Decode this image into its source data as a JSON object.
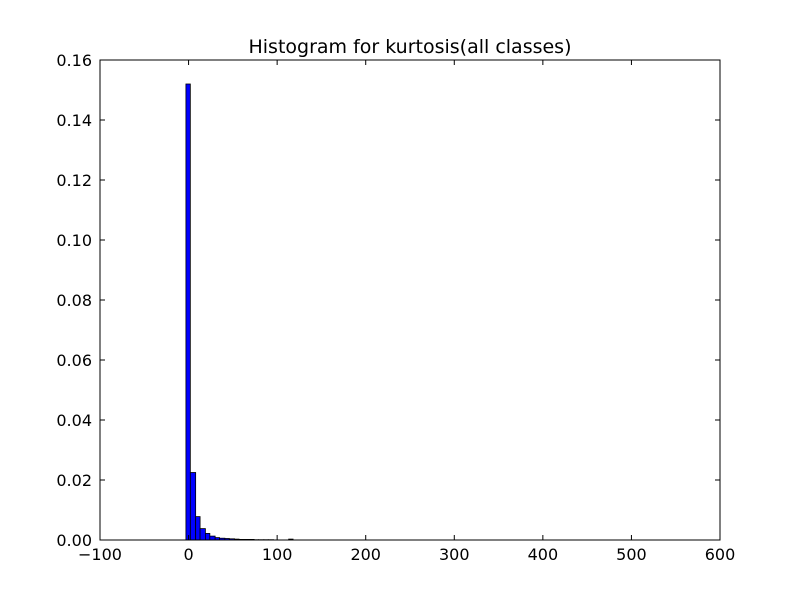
{
  "chart_data": {
    "type": "bar",
    "title": "Histogram for kurtosis(all classes)",
    "xlabel": "",
    "ylabel": "",
    "xlim": [
      -100,
      600
    ],
    "ylim": [
      0,
      0.16
    ],
    "xticks": [
      -100,
      0,
      100,
      200,
      300,
      400,
      500,
      600
    ],
    "yticks": [
      0.0,
      0.02,
      0.04,
      0.06,
      0.08,
      0.1,
      0.12,
      0.14,
      0.16
    ],
    "xtick_labels": [
      "−100",
      "0",
      "100",
      "200",
      "300",
      "400",
      "500",
      "600"
    ],
    "ytick_labels": [
      "0.00",
      "0.02",
      "0.04",
      "0.06",
      "0.08",
      "0.10",
      "0.12",
      "0.14",
      "0.16"
    ],
    "grid": false,
    "bar_color": "#0000ff",
    "edge_color": "#000000",
    "bins": [
      {
        "x0": -3,
        "x1": 2,
        "value": 0.152
      },
      {
        "x0": 2,
        "x1": 8,
        "value": 0.0225
      },
      {
        "x0": 8,
        "x1": 13,
        "value": 0.0078
      },
      {
        "x0": 13,
        "x1": 19,
        "value": 0.0038
      },
      {
        "x0": 19,
        "x1": 24,
        "value": 0.0022
      },
      {
        "x0": 24,
        "x1": 30,
        "value": 0.0013
      },
      {
        "x0": 30,
        "x1": 35,
        "value": 0.0008
      },
      {
        "x0": 35,
        "x1": 41,
        "value": 0.0006
      },
      {
        "x0": 41,
        "x1": 46,
        "value": 0.0005
      },
      {
        "x0": 46,
        "x1": 52,
        "value": 0.0004
      },
      {
        "x0": 52,
        "x1": 57,
        "value": 0.0003
      },
      {
        "x0": 57,
        "x1": 63,
        "value": 0.0002
      },
      {
        "x0": 63,
        "x1": 68,
        "value": 0.0002
      },
      {
        "x0": 68,
        "x1": 74,
        "value": 0.0002
      },
      {
        "x0": 74,
        "x1": 79,
        "value": 0.0001
      },
      {
        "x0": 79,
        "x1": 85,
        "value": 0.0001
      },
      {
        "x0": 85,
        "x1": 90,
        "value": 0.0001
      },
      {
        "x0": 90,
        "x1": 96,
        "value": 0.0001
      },
      {
        "x0": 113,
        "x1": 118,
        "value": 0.0003
      }
    ]
  }
}
